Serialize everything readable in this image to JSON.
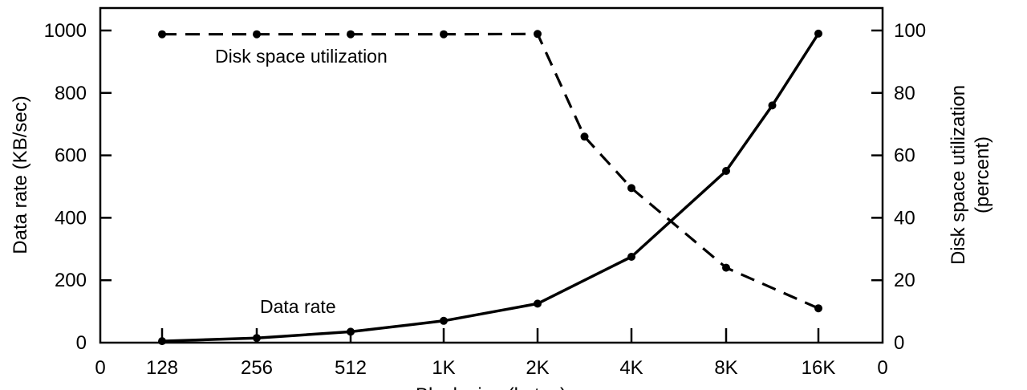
{
  "chart_data": {
    "type": "line",
    "x_tick_labels": [
      "0",
      "128",
      "256",
      "512",
      "1K",
      "2K",
      "4K",
      "8K",
      "16K",
      "0"
    ],
    "x_categories": [
      "128",
      "256",
      "512",
      "1K",
      "2K",
      "4K",
      "8K",
      "16K"
    ],
    "xlabel": "Block size (bytes)",
    "ylabel_left": "Data rate (KB/sec)",
    "ylabel_right_lines": [
      "Disk space utilization",
      "(percent)"
    ],
    "ylim_left": [
      0,
      1000
    ],
    "ylim_right": [
      0,
      100
    ],
    "yticks_left": [
      "0",
      "200",
      "400",
      "600",
      "800",
      "1000"
    ],
    "yticks_right": [
      "0",
      "20",
      "40",
      "60",
      "80",
      "100"
    ],
    "grid": false,
    "series": [
      {
        "name": "Data rate",
        "axis": "left",
        "style": "solid",
        "points": [
          {
            "x": 0,
            "y": 5
          },
          {
            "x": 1,
            "y": 15
          },
          {
            "x": 2,
            "y": 35
          },
          {
            "x": 3,
            "y": 70
          },
          {
            "x": 4,
            "y": 125
          },
          {
            "x": 5,
            "y": 275
          },
          {
            "x": 6,
            "y": 550
          },
          {
            "x": 6.5,
            "y": 760
          },
          {
            "x": 7,
            "y": 990
          }
        ]
      },
      {
        "name": "Disk space utilization",
        "axis": "right",
        "style": "dashed",
        "points": [
          {
            "x": 0,
            "y": 98.8
          },
          {
            "x": 1,
            "y": 98.8
          },
          {
            "x": 2,
            "y": 98.8
          },
          {
            "x": 3,
            "y": 98.8
          },
          {
            "x": 4,
            "y": 98.9
          },
          {
            "x": 4.5,
            "y": 66
          },
          {
            "x": 5,
            "y": 49.5
          },
          {
            "x": 6,
            "y": 24
          },
          {
            "x": 7,
            "y": 11
          }
        ]
      }
    ],
    "annotations": [
      "Disk space utilization",
      "Data rate"
    ],
    "colors": {
      "line": "#000000",
      "background": "#ffffff"
    }
  }
}
